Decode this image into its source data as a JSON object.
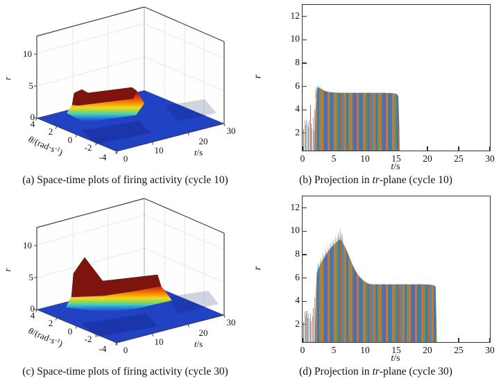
{
  "style": {
    "stripe_width": 3,
    "stripe_colors": [
      "#3e7cab",
      "#c2793f",
      "#7f8b4c",
      "#3e7cab",
      "#b5673a",
      "#4a8fa6",
      "#c2793f",
      "#3e7cab",
      "#8a8a52",
      "#c2793f",
      "#3e7cab",
      "#6f5f9a",
      "#c2793f",
      "#3e7cab"
    ],
    "floor_blue": "#2242c4",
    "plateau_red": "#7d150e",
    "axis_line": "#3f3f3f"
  },
  "ui": {
    "axis": {
      "r_italic": "r",
      "t_italic": "t",
      "t_rest": "/s",
      "theta_italic": "θ",
      "theta_mid": "/(rad·s",
      "theta_sup": "-1",
      "theta_close": ")"
    }
  },
  "captions": {
    "a": "(a) Space-time plots of firing activity (cycle 10)",
    "b_prefix": "(b) Projection in ",
    "b_italic": "tr",
    "b_suffix": "-plane (cycle 10)",
    "c": "(c) Space-time plots of firing activity (cycle 30)",
    "d_prefix": "(d) Projection in ",
    "d_italic": "tr",
    "d_suffix": "-plane (cycle 30)"
  },
  "chart_data": [
    {
      "id": "a",
      "type": "heatmap",
      "subtype": "3d-surface",
      "title": "(a) Space-time plots of firing activity (cycle 10)",
      "xlabel": "t/s",
      "ylabel": "θ/(rad·s⁻¹)",
      "zlabel": "r",
      "xlim": [
        0,
        30
      ],
      "ylim": [
        -4,
        4
      ],
      "zlim": [
        0,
        12.5
      ],
      "xticks": [
        0,
        10,
        20,
        30
      ],
      "yticks": [
        4,
        2,
        0,
        -2,
        -4
      ],
      "zticks": [
        0,
        5,
        10
      ],
      "baseline_r": 0,
      "ridge": {
        "t_start": 2,
        "t_end": 15.5,
        "theta_center": 0,
        "theta_halfwidth": 1.5,
        "plateau_r": 5.4,
        "onset_peak_r": 5.9
      },
      "colormap": "jet",
      "description": "Flat blue surface at r≈0 with a rainbow-edged dark-red plateau ridge (r≈5.4) near θ≈0 lasting from t≈2 s to t≈15.5 s"
    },
    {
      "id": "b",
      "type": "line",
      "subtype": "tr-projection-envelope",
      "title": "(b) Projection in tr-plane (cycle 10)",
      "xlabel": "t/s",
      "ylabel": "r",
      "xlim": [
        0,
        30
      ],
      "ylim": [
        0.5,
        13
      ],
      "xticks": [
        0,
        5,
        10,
        15,
        20,
        25,
        30
      ],
      "yticks": [
        2,
        4,
        6,
        8,
        10,
        12
      ],
      "envelope": [
        [
          1.95,
          0.6
        ],
        [
          2.05,
          3.6
        ],
        [
          2.2,
          5.3
        ],
        [
          2.35,
          5.8
        ],
        [
          2.55,
          5.92
        ],
        [
          2.9,
          5.82
        ],
        [
          3.5,
          5.62
        ],
        [
          4.5,
          5.5
        ],
        [
          6.0,
          5.45
        ],
        [
          13.0,
          5.45
        ],
        [
          14.5,
          5.42
        ],
        [
          15.1,
          5.36
        ],
        [
          15.35,
          5.15
        ],
        [
          15.5,
          2.5
        ],
        [
          15.55,
          0.6
        ]
      ],
      "crown": [
        [
          2.0,
          5.2
        ],
        [
          2.1,
          6.1
        ],
        [
          2.25,
          5.7
        ],
        [
          2.4,
          6.15
        ],
        [
          2.6,
          5.85
        ],
        [
          2.8,
          6.0
        ],
        [
          3.0,
          5.7
        ],
        [
          3.2,
          5.85
        ],
        [
          3.4,
          5.65
        ],
        [
          3.4,
          5.5
        ],
        [
          2.6,
          5.6
        ],
        [
          2.0,
          4.9
        ]
      ],
      "spikes": [
        [
          0.12,
          2.35,
          "#b24a3e"
        ],
        [
          0.28,
          3.05,
          "#9a9a9a"
        ],
        [
          0.42,
          2.7,
          "#9a9a9a"
        ],
        [
          0.57,
          3.2,
          "#9a9a9a"
        ],
        [
          0.72,
          2.9,
          "#9a9a9a"
        ],
        [
          0.87,
          2.5,
          "#9a9a9a"
        ],
        [
          1.02,
          3.1,
          "#9a9a9a"
        ],
        [
          1.17,
          4.35,
          "#b24a3e"
        ],
        [
          1.32,
          2.8,
          "#9a9a9a"
        ],
        [
          1.47,
          2.4,
          "#9a9a9a"
        ],
        [
          1.62,
          3.35,
          "#9a9a9a"
        ],
        [
          1.77,
          2.15,
          "#9a9a9a"
        ],
        [
          1.9,
          4.1,
          "#8090a8"
        ]
      ],
      "plateau_r": 5.4,
      "description": "Dense multicolored vertical traces between t≈2 s and t≈15.5 s rising quickly to r≈5.9 then settling at r≈5.4"
    },
    {
      "id": "c",
      "type": "heatmap",
      "subtype": "3d-surface",
      "title": "(c) Space-time plots of firing activity (cycle 30)",
      "xlabel": "t/s",
      "ylabel": "θ/(rad·s⁻¹)",
      "zlabel": "r",
      "xlim": [
        0,
        30
      ],
      "ylim": [
        -4,
        4
      ],
      "zlim": [
        0,
        12.5
      ],
      "xticks": [
        0,
        10,
        20,
        30
      ],
      "yticks": [
        4,
        2,
        0,
        -2,
        -4
      ],
      "zticks": [
        0,
        5,
        10
      ],
      "baseline_r": 0,
      "ridge": {
        "t_start": 2,
        "t_end": 21.4,
        "theta_center": 0,
        "theta_halfwidth": 1.5,
        "plateau_r": 5.4,
        "onset_peak_r": 9.5,
        "peak_t": 5.5
      },
      "colormap": "jet",
      "description": "Flat blue surface at r≈0 with a dark-red ridge that climbs to a sharp peak (r≈9.5) near t≈5.5 s then relaxes to a plateau (r≈5.4) lasting to t≈21.4 s"
    },
    {
      "id": "d",
      "type": "line",
      "subtype": "tr-projection-envelope",
      "title": "(d) Projection in tr-plane (cycle 30)",
      "xlabel": "t/s",
      "ylabel": "r",
      "xlim": [
        0,
        30
      ],
      "ylim": [
        0.5,
        13
      ],
      "xticks": [
        0,
        5,
        10,
        15,
        20,
        25,
        30
      ],
      "yticks": [
        2,
        4,
        6,
        8,
        10,
        12
      ],
      "envelope": [
        [
          1.95,
          0.6
        ],
        [
          2.1,
          4.2
        ],
        [
          2.25,
          6.35
        ],
        [
          2.5,
          6.75
        ],
        [
          3.0,
          7.3
        ],
        [
          3.5,
          7.75
        ],
        [
          4.0,
          8.2
        ],
        [
          4.5,
          8.55
        ],
        [
          5.0,
          8.85
        ],
        [
          5.5,
          9.1
        ],
        [
          5.9,
          9.3
        ],
        [
          6.2,
          9.25
        ],
        [
          6.5,
          9.0
        ],
        [
          7.0,
          8.45
        ],
        [
          7.5,
          7.8
        ],
        [
          8.0,
          7.15
        ],
        [
          8.5,
          6.6
        ],
        [
          9.0,
          6.2
        ],
        [
          9.5,
          5.9
        ],
        [
          10.0,
          5.68
        ],
        [
          10.5,
          5.52
        ],
        [
          11.0,
          5.46
        ],
        [
          19.5,
          5.45
        ],
        [
          20.5,
          5.42
        ],
        [
          21.0,
          5.38
        ],
        [
          21.3,
          5.28
        ],
        [
          21.45,
          2.5
        ],
        [
          21.5,
          0.6
        ]
      ],
      "crown": [
        [
          2.3,
          6.5
        ],
        [
          2.5,
          7.4
        ],
        [
          2.7,
          6.9
        ],
        [
          2.9,
          7.8
        ],
        [
          3.1,
          7.3
        ],
        [
          3.3,
          8.2
        ],
        [
          3.5,
          7.6
        ],
        [
          3.7,
          8.5
        ],
        [
          3.9,
          7.9
        ],
        [
          4.1,
          8.8
        ],
        [
          4.3,
          8.2
        ],
        [
          4.5,
          9.1
        ],
        [
          4.7,
          8.5
        ],
        [
          4.9,
          9.4
        ],
        [
          5.1,
          8.7
        ],
        [
          5.3,
          9.7
        ],
        [
          5.5,
          8.9
        ],
        [
          5.7,
          10.0
        ],
        [
          5.9,
          9.2
        ],
        [
          6.05,
          10.4
        ],
        [
          6.2,
          9.4
        ],
        [
          6.35,
          9.9
        ],
        [
          6.5,
          9.1
        ],
        [
          6.5,
          8.9
        ],
        [
          5.5,
          9.0
        ],
        [
          4.5,
          8.5
        ],
        [
          3.5,
          7.6
        ],
        [
          2.8,
          6.9
        ],
        [
          2.3,
          6.3
        ]
      ],
      "spikes": [
        [
          0.12,
          2.25,
          "#b24a3e"
        ],
        [
          0.3,
          3.1,
          "#9a9a9a"
        ],
        [
          0.45,
          2.8,
          "#9a9a9a"
        ],
        [
          0.6,
          3.2,
          "#9a9a9a"
        ],
        [
          0.75,
          2.6,
          "#9a9a9a"
        ],
        [
          0.9,
          2.95,
          "#9a9a9a"
        ],
        [
          1.05,
          2.5,
          "#9a9a9a"
        ],
        [
          1.2,
          3.0,
          "#9a9a9a"
        ],
        [
          1.35,
          2.3,
          "#9a9a9a"
        ],
        [
          1.5,
          2.7,
          "#9a9a9a"
        ],
        [
          1.68,
          3.4,
          "#a8685a"
        ],
        [
          1.85,
          4.3,
          "#8090a8"
        ]
      ],
      "plateau_r": 5.4,
      "peak_r": 10.4,
      "description": "Dense multicolored vertical traces between t≈2 s and t≈21.5 s rising to a spiky peak (r≈9.3–10.4) near t≈6 s then decaying to a plateau at r≈5.4"
    }
  ]
}
